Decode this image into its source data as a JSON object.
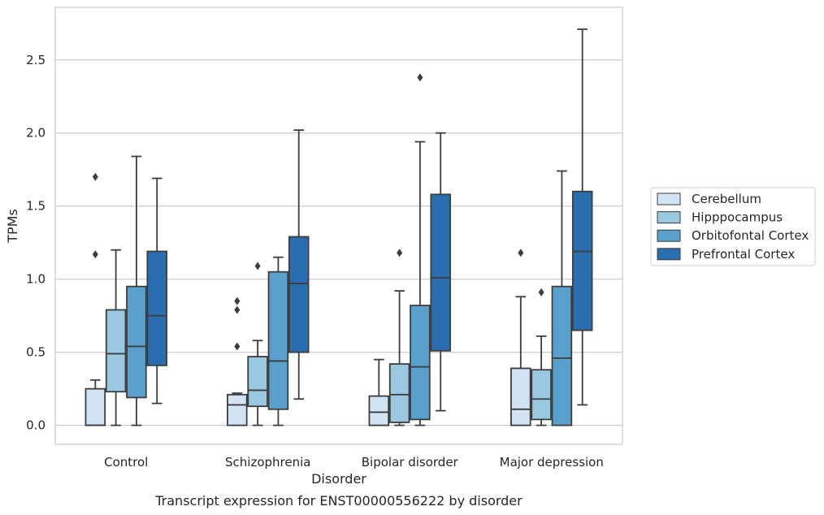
{
  "chart_data": {
    "type": "box",
    "caption": "Transcript expression for ENST00000556222 by disorder",
    "xlabel": "Disorder",
    "ylabel": "TPMs",
    "ylim": [
      -0.13,
      2.86
    ],
    "yticks": [
      0.0,
      0.5,
      1.0,
      1.5,
      2.0,
      2.5
    ],
    "ytick_labels": [
      "0.0",
      "0.5",
      "1.0",
      "1.5",
      "2.0",
      "2.5"
    ],
    "grid": "horizontal",
    "legend_position": "right",
    "categories": [
      "Control",
      "Schizophrenia",
      "Bipolar disorder",
      "Major depression"
    ],
    "series": [
      {
        "name": "Cerebellum",
        "color": "#d2e3f3",
        "boxes": [
          {
            "whislo": 0.0,
            "q1": 0.0,
            "med": 0.0,
            "q3": 0.25,
            "whishi": 0.31,
            "fliers": [
              1.7,
              1.17
            ]
          },
          {
            "whislo": 0.0,
            "q1": 0.0,
            "med": 0.14,
            "q3": 0.21,
            "whishi": 0.22,
            "fliers": [
              0.85,
              0.79,
              0.54
            ]
          },
          {
            "whislo": 0.0,
            "q1": 0.0,
            "med": 0.09,
            "q3": 0.2,
            "whishi": 0.45,
            "fliers": []
          },
          {
            "whislo": 0.0,
            "q1": 0.0,
            "med": 0.11,
            "q3": 0.39,
            "whishi": 0.88,
            "fliers": [
              1.18
            ]
          }
        ]
      },
      {
        "name": "Hipppocampus",
        "color": "#9ac8e0",
        "boxes": [
          {
            "whislo": 0.0,
            "q1": 0.23,
            "med": 0.49,
            "q3": 0.79,
            "whishi": 1.2,
            "fliers": []
          },
          {
            "whislo": 0.0,
            "q1": 0.13,
            "med": 0.24,
            "q3": 0.47,
            "whishi": 0.58,
            "fliers": [
              1.09
            ]
          },
          {
            "whislo": 0.0,
            "q1": 0.02,
            "med": 0.21,
            "q3": 0.42,
            "whishi": 0.92,
            "fliers": [
              1.18
            ]
          },
          {
            "whislo": 0.0,
            "q1": 0.04,
            "med": 0.18,
            "q3": 0.38,
            "whishi": 0.61,
            "fliers": [
              0.91
            ]
          }
        ]
      },
      {
        "name": "Orbitofontal Cortex",
        "color": "#5aa0cd",
        "boxes": [
          {
            "whislo": 0.0,
            "q1": 0.19,
            "med": 0.54,
            "q3": 0.95,
            "whishi": 1.84,
            "fliers": []
          },
          {
            "whislo": 0.0,
            "q1": 0.11,
            "med": 0.44,
            "q3": 1.05,
            "whishi": 1.15,
            "fliers": []
          },
          {
            "whislo": 0.0,
            "q1": 0.04,
            "med": 0.4,
            "q3": 0.82,
            "whishi": 1.94,
            "fliers": [
              2.38
            ]
          },
          {
            "whislo": 0.0,
            "q1": 0.0,
            "med": 0.46,
            "q3": 0.95,
            "whishi": 1.74,
            "fliers": []
          }
        ]
      },
      {
        "name": "Prefrontal Cortex",
        "color": "#2b6eaf",
        "boxes": [
          {
            "whislo": 0.15,
            "q1": 0.41,
            "med": 0.75,
            "q3": 1.19,
            "whishi": 1.69,
            "fliers": []
          },
          {
            "whislo": 0.18,
            "q1": 0.5,
            "med": 0.97,
            "q3": 1.29,
            "whishi": 2.02,
            "fliers": []
          },
          {
            "whislo": 0.1,
            "q1": 0.51,
            "med": 1.01,
            "q3": 1.58,
            "whishi": 2.0,
            "fliers": []
          },
          {
            "whislo": 0.14,
            "q1": 0.65,
            "med": 1.19,
            "q3": 1.6,
            "whishi": 2.71,
            "fliers": []
          }
        ]
      }
    ]
  }
}
